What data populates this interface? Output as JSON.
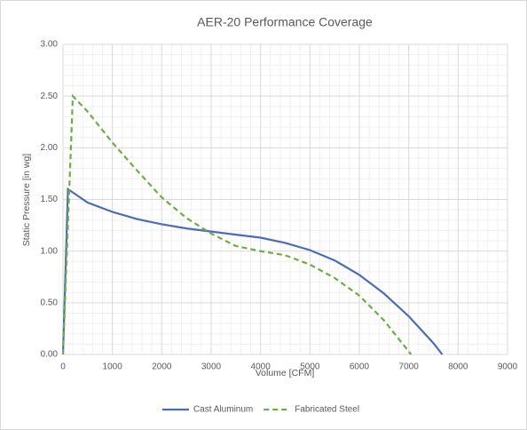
{
  "chart_data": {
    "type": "line",
    "title": "AER-20 Performance Coverage",
    "x_label": "Volume [CFM]",
    "y_label": "Static Pressure [in wg]",
    "xlim": [
      0,
      9000
    ],
    "xticks": [
      0,
      1000,
      2000,
      3000,
      4000,
      5000,
      6000,
      7000,
      8000,
      9000
    ],
    "ylim": [
      0,
      3
    ],
    "yticks": [
      {
        "value": 0,
        "label": "0.00"
      },
      {
        "value": 0.5,
        "label": "0.50"
      },
      {
        "value": 1,
        "label": "1.00"
      },
      {
        "value": 1.5,
        "label": "1.50"
      },
      {
        "value": 2,
        "label": "2.00"
      },
      {
        "value": 2.5,
        "label": "2.50"
      },
      {
        "value": 3,
        "label": "3.00"
      }
    ],
    "grid": true,
    "legend": "bottom",
    "series": [
      {
        "name": "Cast Aluminum",
        "color": "#4a6db3",
        "dash": false,
        "x": [
          0,
          100,
          500,
          1000,
          1500,
          2000,
          2500,
          3000,
          3500,
          4000,
          4500,
          5000,
          5500,
          6000,
          6500,
          7000,
          7500,
          7680
        ],
        "values": [
          0,
          1.6,
          1.47,
          1.38,
          1.31,
          1.26,
          1.22,
          1.19,
          1.16,
          1.13,
          1.08,
          1.01,
          0.91,
          0.77,
          0.59,
          0.37,
          0.11,
          0
        ]
      },
      {
        "name": "Fabricated Steel",
        "color": "#6fac46",
        "dash": true,
        "x": [
          0,
          200,
          500,
          1000,
          1500,
          2000,
          2500,
          3000,
          3500,
          4000,
          4500,
          5000,
          5500,
          6000,
          6500,
          7050
        ],
        "values": [
          0,
          2.5,
          2.35,
          2.05,
          1.78,
          1.52,
          1.32,
          1.17,
          1.05,
          1.0,
          0.96,
          0.87,
          0.74,
          0.57,
          0.33,
          0
        ]
      }
    ]
  }
}
